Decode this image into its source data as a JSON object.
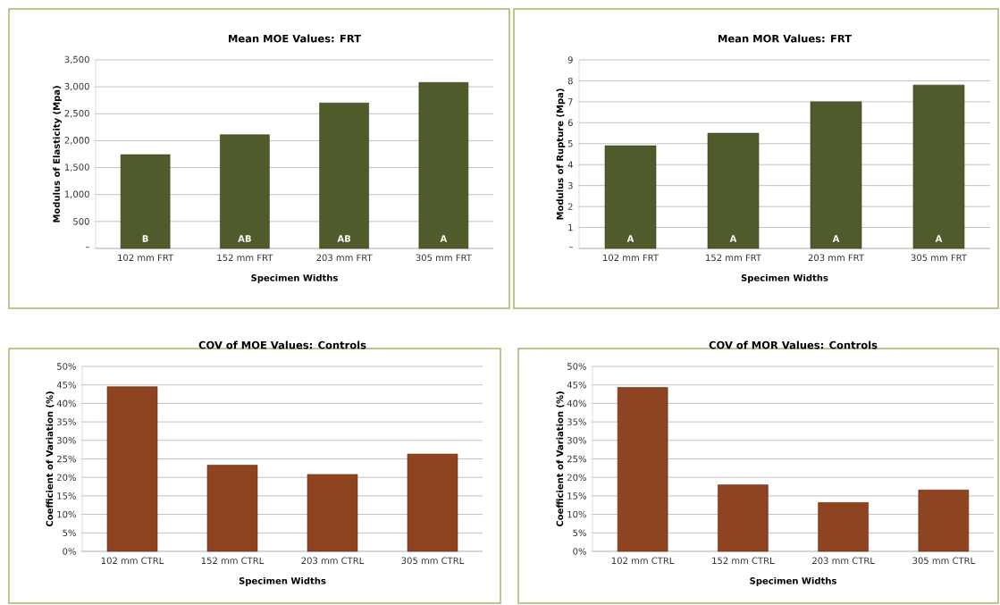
{
  "chart_data": [
    {
      "type": "bar",
      "title": "Mean MOE Values: FRT",
      "xlabel": "Specimen Widths",
      "ylabel": "Modulus of Elasticity (Mpa)",
      "categories": [
        "102 mm FRT",
        "152 mm FRT",
        "203 mm FRT",
        "305 mm FRT"
      ],
      "values": [
        1740,
        2110,
        2700,
        3080
      ],
      "color": "#4f5b2a",
      "ylim": [
        0,
        3500
      ],
      "yticks": [
        {
          "value": 0,
          "label": "–"
        },
        500,
        {
          "value": 1000,
          "label": "1,000"
        },
        {
          "value": 1500,
          "label": "1,500"
        },
        {
          "value": 2000,
          "label": "2,000"
        },
        {
          "value": 2500,
          "label": "2,500"
        },
        {
          "value": 3000,
          "label": "3,000"
        },
        {
          "value": 3500,
          "label": "3,500"
        }
      ],
      "grid": "y",
      "annotations": [
        "B",
        "AB",
        "AB",
        "A"
      ]
    },
    {
      "type": "bar",
      "title": "Mean MOR Values: FRT",
      "xlabel": "Specimen Widths",
      "ylabel": "Modulus of Rupture (Mpa)",
      "categories": [
        "102 mm FRT",
        "152 mm FRT",
        "203 mm FRT",
        "305 mm FRT"
      ],
      "values": [
        4.9,
        5.5,
        7.0,
        7.8
      ],
      "color": "#4f5b2a",
      "ylim": [
        0,
        9
      ],
      "yticks": [
        {
          "value": 0,
          "label": "–"
        },
        1,
        2,
        3,
        4,
        5,
        6,
        7,
        8,
        9
      ],
      "grid": "y",
      "annotations": [
        "A",
        "A",
        "A",
        "A"
      ]
    },
    {
      "type": "bar",
      "title": "COV of MOE Values: Controls",
      "xlabel": "Specimen Widths",
      "ylabel": "Coefficient of Variation (%)",
      "categories": [
        "102 mm CTRL",
        "152 mm CTRL",
        "203 mm CTRL",
        "305 mm CTRL"
      ],
      "values": [
        44.5,
        23.3,
        20.8,
        26.3
      ],
      "color": "#8e4421",
      "ylim": [
        0,
        50
      ],
      "yticks": [
        {
          "value": 0,
          "label": "0%"
        },
        {
          "value": 5,
          "label": "5%"
        },
        {
          "value": 10,
          "label": "10%"
        },
        {
          "value": 15,
          "label": "15%"
        },
        {
          "value": 20,
          "label": "20%"
        },
        {
          "value": 25,
          "label": "25%"
        },
        {
          "value": 30,
          "label": "30%"
        },
        {
          "value": 35,
          "label": "35%"
        },
        {
          "value": 40,
          "label": "40%"
        },
        {
          "value": 45,
          "label": "45%"
        },
        {
          "value": 50,
          "label": "50%"
        }
      ],
      "grid": "y"
    },
    {
      "type": "bar",
      "title": "COV of MOR Values: Controls",
      "xlabel": "Specimen Widths",
      "ylabel": "Coefficient of Variation (%)",
      "categories": [
        "102 mm CTRL",
        "152 mm CTRL",
        "203 mm CTRL",
        "305 mm CTRL"
      ],
      "values": [
        44.3,
        18.0,
        13.2,
        16.6
      ],
      "color": "#8e4421",
      "ylim": [
        0,
        50
      ],
      "yticks": [
        {
          "value": 0,
          "label": "0%"
        },
        {
          "value": 5,
          "label": "5%"
        },
        {
          "value": 10,
          "label": "10%"
        },
        {
          "value": 15,
          "label": "15%"
        },
        {
          "value": 20,
          "label": "20%"
        },
        {
          "value": 25,
          "label": "25%"
        },
        {
          "value": 30,
          "label": "30%"
        },
        {
          "value": 35,
          "label": "35%"
        },
        {
          "value": 40,
          "label": "40%"
        },
        {
          "value": 45,
          "label": "45%"
        },
        {
          "value": 50,
          "label": "50%"
        }
      ],
      "grid": "y"
    }
  ]
}
